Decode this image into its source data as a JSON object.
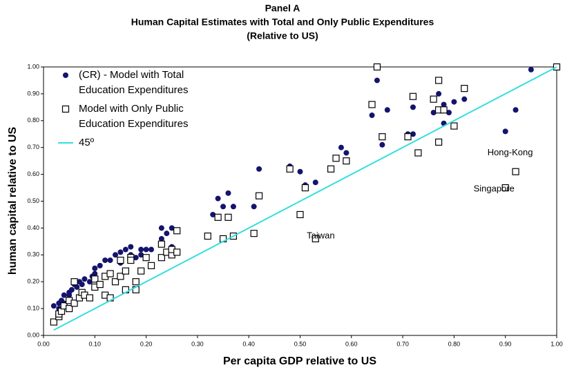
{
  "chart_data": {
    "type": "scatter",
    "title": "Panel A",
    "subtitle": [
      "Human Capital Estimates with Total and Only Public Expenditures",
      "(Relative to US)"
    ],
    "x_label": "Per capita GDP relative to US",
    "y_label": "human capital relative to US",
    "xlim": [
      0,
      1
    ],
    "ylim": [
      0,
      1
    ],
    "xticks": [
      {
        "value": 0,
        "label": "0.00"
      },
      {
        "value": 0.1,
        "label": "0.10"
      },
      {
        "value": 0.2,
        "label": "0.20"
      },
      {
        "value": 0.3,
        "label": "0.30"
      },
      {
        "value": 0.4,
        "label": "0.40"
      },
      {
        "value": 0.5,
        "label": "0.50"
      },
      {
        "value": 0.6,
        "label": "0.60"
      },
      {
        "value": 0.7,
        "label": "0.70"
      },
      {
        "value": 0.8,
        "label": "0.80"
      },
      {
        "value": 0.9,
        "label": "0.90"
      },
      {
        "value": 1,
        "label": "1.00"
      }
    ],
    "yticks": [
      {
        "value": 0,
        "label": "0.00"
      },
      {
        "value": 0.1,
        "label": "0.10"
      },
      {
        "value": 0.2,
        "label": "0.20"
      },
      {
        "value": 0.3,
        "label": "0.30"
      },
      {
        "value": 0.4,
        "label": "0.40"
      },
      {
        "value": 0.5,
        "label": "0.50"
      },
      {
        "value": 0.6,
        "label": "0.60"
      },
      {
        "value": 0.7,
        "label": "0.70"
      },
      {
        "value": 0.8,
        "label": "0.80"
      },
      {
        "value": 0.9,
        "label": "0.90"
      },
      {
        "value": 1,
        "label": "1.00"
      }
    ],
    "grid": false,
    "series": [
      {
        "name": "(CR) - Model with Total Education Expenditures",
        "type": "scatter",
        "marker": "circle",
        "color": "#14146e",
        "x": [
          0.02,
          0.03,
          0.03,
          0.035,
          0.04,
          0.04,
          0.05,
          0.05,
          0.055,
          0.06,
          0.065,
          0.07,
          0.075,
          0.08,
          0.09,
          0.095,
          0.1,
          0.1,
          0.11,
          0.12,
          0.12,
          0.13,
          0.14,
          0.15,
          0.15,
          0.16,
          0.17,
          0.17,
          0.18,
          0.19,
          0.19,
          0.2,
          0.21,
          0.23,
          0.23,
          0.24,
          0.25,
          0.25,
          0.26,
          0.33,
          0.34,
          0.35,
          0.36,
          0.37,
          0.41,
          0.42,
          0.48,
          0.5,
          0.51,
          0.53,
          0.57,
          0.58,
          0.59,
          0.64,
          0.65,
          0.66,
          0.67,
          0.71,
          0.72,
          0.72,
          0.76,
          0.77,
          0.78,
          0.78,
          0.79,
          0.8,
          0.82,
          0.9,
          0.92,
          0.95,
          1.0
        ],
        "y": [
          0.11,
          0.12,
          0.1,
          0.13,
          0.15,
          0.12,
          0.15,
          0.16,
          0.17,
          0.19,
          0.18,
          0.2,
          0.19,
          0.21,
          0.2,
          0.22,
          0.25,
          0.23,
          0.26,
          0.28,
          0.22,
          0.28,
          0.3,
          0.31,
          0.27,
          0.32,
          0.33,
          0.3,
          0.29,
          0.32,
          0.3,
          0.32,
          0.32,
          0.4,
          0.36,
          0.38,
          0.4,
          0.33,
          0.39,
          0.45,
          0.51,
          0.48,
          0.53,
          0.48,
          0.48,
          0.62,
          0.63,
          0.61,
          0.56,
          0.57,
          0.66,
          0.7,
          0.68,
          0.82,
          0.95,
          0.71,
          0.84,
          0.75,
          0.75,
          0.85,
          0.83,
          0.9,
          0.86,
          0.79,
          0.83,
          0.87,
          0.88,
          0.76,
          0.84,
          0.99,
          1.0
        ]
      },
      {
        "name": "Model with Only Public Education Expenditures",
        "type": "scatter",
        "marker": "square",
        "color": "#000000",
        "x": [
          0.02,
          0.03,
          0.03,
          0.035,
          0.04,
          0.05,
          0.05,
          0.06,
          0.06,
          0.07,
          0.075,
          0.08,
          0.09,
          0.1,
          0.1,
          0.11,
          0.12,
          0.12,
          0.13,
          0.13,
          0.14,
          0.15,
          0.15,
          0.16,
          0.16,
          0.17,
          0.17,
          0.18,
          0.18,
          0.19,
          0.2,
          0.21,
          0.23,
          0.23,
          0.24,
          0.25,
          0.25,
          0.26,
          0.26,
          0.32,
          0.34,
          0.35,
          0.36,
          0.37,
          0.41,
          0.42,
          0.48,
          0.5,
          0.51,
          0.53,
          0.56,
          0.57,
          0.59,
          0.64,
          0.65,
          0.66,
          0.71,
          0.72,
          0.73,
          0.76,
          0.77,
          0.77,
          0.77,
          0.78,
          0.8,
          0.82,
          0.9,
          0.92,
          1.0
        ],
        "y": [
          0.05,
          0.07,
          0.08,
          0.09,
          0.11,
          0.13,
          0.1,
          0.12,
          0.2,
          0.14,
          0.16,
          0.15,
          0.14,
          0.18,
          0.21,
          0.19,
          0.22,
          0.15,
          0.14,
          0.23,
          0.2,
          0.28,
          0.22,
          0.24,
          0.17,
          0.29,
          0.28,
          0.2,
          0.17,
          0.24,
          0.29,
          0.26,
          0.29,
          0.34,
          0.31,
          0.3,
          0.32,
          0.31,
          0.39,
          0.37,
          0.44,
          0.36,
          0.44,
          0.37,
          0.38,
          0.52,
          0.62,
          0.45,
          0.55,
          0.36,
          0.62,
          0.66,
          0.65,
          0.86,
          1.0,
          0.74,
          0.74,
          0.89,
          0.68,
          0.88,
          0.95,
          0.72,
          0.84,
          0.84,
          0.78,
          0.92,
          0.55,
          0.61,
          1.0
        ]
      },
      {
        "name": "45º",
        "type": "line",
        "color": "#33dede",
        "x": [
          0.02,
          1.0
        ],
        "y": [
          0.02,
          1.0
        ]
      }
    ],
    "annotations": [
      {
        "text": "Hong-Kong",
        "x": 0.865,
        "y": 0.68
      },
      {
        "text": "Singapore",
        "x": 0.838,
        "y": 0.545
      },
      {
        "text": "Taiwan",
        "x": 0.513,
        "y": 0.37
      }
    ]
  }
}
